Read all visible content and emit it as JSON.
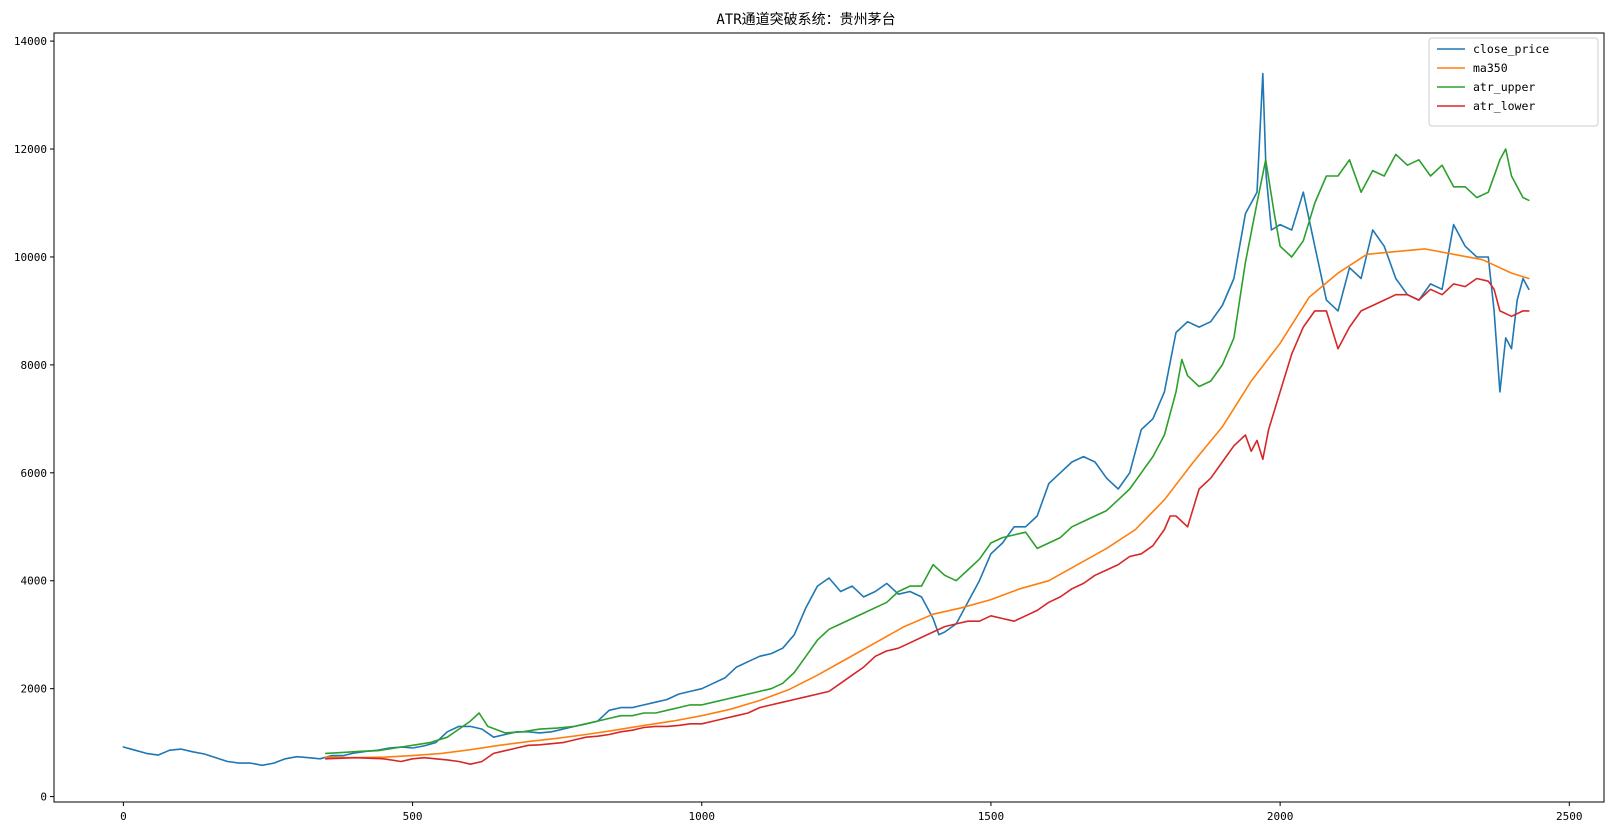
{
  "chart_data": {
    "type": "line",
    "title": "ATR通道突破系统：贵州茅台",
    "xlabel": "",
    "ylabel": "",
    "xlim": [
      -120,
      2560
    ],
    "ylim": [
      -100,
      14150
    ],
    "xticks": [
      0,
      500,
      1000,
      1500,
      2000,
      2500
    ],
    "xtick_labels": [
      "0",
      "500",
      "1000",
      "1500",
      "2000",
      "2500"
    ],
    "yticks": [
      0,
      2000,
      4000,
      6000,
      8000,
      10000,
      12000,
      14000
    ],
    "ytick_labels": [
      "0",
      "2000",
      "4000",
      "6000",
      "8000",
      "10000",
      "12000",
      "14000"
    ],
    "grid": false,
    "legend_position": "top-right",
    "series": [
      {
        "name": "close_price",
        "color": "#1f77b4",
        "x": [
          0,
          20,
          40,
          60,
          80,
          100,
          120,
          140,
          160,
          180,
          200,
          220,
          240,
          260,
          280,
          300,
          320,
          340,
          360,
          380,
          400,
          420,
          440,
          460,
          480,
          500,
          520,
          540,
          560,
          580,
          600,
          620,
          640,
          660,
          680,
          700,
          720,
          740,
          760,
          780,
          800,
          820,
          840,
          860,
          880,
          900,
          920,
          940,
          960,
          980,
          1000,
          1020,
          1040,
          1060,
          1080,
          1100,
          1120,
          1140,
          1160,
          1180,
          1200,
          1220,
          1240,
          1260,
          1280,
          1300,
          1320,
          1340,
          1360,
          1380,
          1400,
          1410,
          1420,
          1440,
          1460,
          1480,
          1500,
          1520,
          1540,
          1560,
          1580,
          1600,
          1620,
          1640,
          1660,
          1680,
          1700,
          1720,
          1740,
          1760,
          1780,
          1800,
          1820,
          1840,
          1860,
          1880,
          1900,
          1920,
          1940,
          1960,
          1970,
          1976,
          1985,
          2000,
          2020,
          2040,
          2060,
          2080,
          2100,
          2120,
          2140,
          2160,
          2180,
          2200,
          2220,
          2240,
          2260,
          2280,
          2300,
          2320,
          2340,
          2360,
          2370,
          2380,
          2390,
          2400,
          2410,
          2420,
          2430
        ],
        "values": [
          920,
          860,
          800,
          770,
          860,
          880,
          830,
          790,
          720,
          650,
          620,
          620,
          580,
          620,
          700,
          740,
          720,
          700,
          760,
          760,
          810,
          840,
          860,
          900,
          920,
          900,
          940,
          1000,
          1200,
          1300,
          1300,
          1250,
          1100,
          1150,
          1200,
          1200,
          1180,
          1200,
          1250,
          1300,
          1350,
          1400,
          1600,
          1650,
          1650,
          1700,
          1750,
          1800,
          1900,
          1950,
          2000,
          2100,
          2200,
          2400,
          2500,
          2600,
          2650,
          2750,
          3000,
          3500,
          3900,
          4050,
          3800,
          3900,
          3700,
          3800,
          3950,
          3750,
          3800,
          3700,
          3300,
          3000,
          3050,
          3200,
          3600,
          4000,
          4500,
          4700,
          5000,
          5000,
          5200,
          5800,
          6000,
          6200,
          6300,
          6200,
          5900,
          5700,
          6000,
          6800,
          7000,
          7500,
          8600,
          8800,
          8700,
          8800,
          9100,
          9600,
          10800,
          11200,
          13400,
          11500,
          10500,
          10600,
          10500,
          11200,
          10200,
          9200,
          9000,
          9800,
          9600,
          10500,
          10200,
          9600,
          9300,
          9200,
          9500,
          9400,
          10600,
          10200,
          10000,
          10000,
          9000,
          7500,
          8500,
          8300,
          9200,
          9600,
          9400
        ]
      },
      {
        "name": "ma350",
        "color": "#ff7f0e",
        "x": [
          350,
          400,
          450,
          500,
          550,
          600,
          650,
          700,
          750,
          800,
          850,
          900,
          950,
          1000,
          1050,
          1100,
          1150,
          1200,
          1250,
          1300,
          1350,
          1400,
          1450,
          1500,
          1550,
          1600,
          1650,
          1700,
          1750,
          1800,
          1850,
          1900,
          1950,
          2000,
          2050,
          2100,
          2150,
          2200,
          2250,
          2300,
          2350,
          2400,
          2430
        ],
        "values": [
          730,
          720,
          730,
          760,
          800,
          870,
          950,
          1020,
          1080,
          1150,
          1230,
          1320,
          1400,
          1500,
          1620,
          1780,
          1980,
          2250,
          2550,
          2850,
          3150,
          3380,
          3500,
          3650,
          3850,
          4000,
          4300,
          4600,
          4950,
          5500,
          6200,
          6850,
          7700,
          8400,
          9250,
          9700,
          10050,
          10100,
          10150,
          10050,
          9950,
          9700,
          9600
        ]
      },
      {
        "name": "atr_upper",
        "color": "#2ca02c",
        "x": [
          350,
          380,
          410,
          440,
          470,
          500,
          530,
          560,
          580,
          600,
          615,
          630,
          660,
          690,
          720,
          750,
          780,
          800,
          820,
          840,
          860,
          880,
          900,
          920,
          940,
          960,
          980,
          1000,
          1020,
          1040,
          1060,
          1080,
          1100,
          1120,
          1140,
          1160,
          1180,
          1200,
          1220,
          1240,
          1260,
          1280,
          1300,
          1320,
          1340,
          1360,
          1380,
          1400,
          1420,
          1440,
          1460,
          1480,
          1500,
          1520,
          1540,
          1560,
          1580,
          1600,
          1620,
          1640,
          1660,
          1680,
          1700,
          1720,
          1740,
          1760,
          1780,
          1800,
          1820,
          1830,
          1840,
          1860,
          1880,
          1900,
          1920,
          1940,
          1960,
          1975,
          1990,
          2000,
          2020,
          2040,
          2060,
          2080,
          2100,
          2120,
          2140,
          2160,
          2180,
          2200,
          2220,
          2240,
          2260,
          2280,
          2300,
          2320,
          2340,
          2360,
          2380,
          2390,
          2400,
          2420,
          2430
        ],
        "values": [
          800,
          820,
          840,
          850,
          900,
          950,
          1000,
          1100,
          1250,
          1400,
          1550,
          1300,
          1180,
          1200,
          1250,
          1270,
          1300,
          1350,
          1400,
          1450,
          1500,
          1500,
          1550,
          1550,
          1600,
          1650,
          1700,
          1700,
          1750,
          1800,
          1850,
          1900,
          1950,
          2000,
          2100,
          2300,
          2600,
          2900,
          3100,
          3200,
          3300,
          3400,
          3500,
          3600,
          3800,
          3900,
          3900,
          4300,
          4100,
          4000,
          4200,
          4400,
          4700,
          4800,
          4850,
          4900,
          4600,
          4700,
          4800,
          5000,
          5100,
          5200,
          5300,
          5500,
          5700,
          6000,
          6300,
          6700,
          7500,
          8100,
          7800,
          7600,
          7700,
          8000,
          8500,
          9900,
          11000,
          11800,
          10800,
          10200,
          10000,
          10300,
          11000,
          11500,
          11500,
          11800,
          11200,
          11600,
          11500,
          11900,
          11700,
          11800,
          11500,
          11700,
          11300,
          11300,
          11100,
          11200,
          11800,
          12000,
          11500,
          11100,
          11050
        ]
      },
      {
        "name": "atr_lower",
        "color": "#d62728",
        "x": [
          350,
          400,
          450,
          480,
          500,
          520,
          540,
          560,
          580,
          600,
          620,
          640,
          660,
          680,
          700,
          720,
          740,
          760,
          780,
          800,
          820,
          840,
          860,
          880,
          900,
          920,
          940,
          960,
          980,
          1000,
          1020,
          1040,
          1060,
          1080,
          1100,
          1120,
          1140,
          1160,
          1180,
          1200,
          1220,
          1240,
          1260,
          1280,
          1300,
          1320,
          1340,
          1360,
          1380,
          1400,
          1420,
          1440,
          1460,
          1480,
          1500,
          1520,
          1540,
          1560,
          1580,
          1600,
          1620,
          1640,
          1660,
          1680,
          1700,
          1720,
          1740,
          1760,
          1780,
          1800,
          1810,
          1820,
          1840,
          1860,
          1880,
          1900,
          1920,
          1940,
          1950,
          1960,
          1970,
          1980,
          2000,
          2020,
          2040,
          2060,
          2080,
          2100,
          2120,
          2140,
          2160,
          2180,
          2200,
          2220,
          2240,
          2260,
          2280,
          2300,
          2320,
          2340,
          2360,
          2370,
          2380,
          2400,
          2420,
          2430
        ],
        "values": [
          700,
          720,
          700,
          650,
          700,
          720,
          700,
          680,
          650,
          600,
          650,
          800,
          850,
          900,
          950,
          960,
          980,
          1000,
          1050,
          1100,
          1120,
          1150,
          1200,
          1230,
          1280,
          1300,
          1300,
          1320,
          1350,
          1350,
          1400,
          1450,
          1500,
          1550,
          1650,
          1700,
          1750,
          1800,
          1850,
          1900,
          1950,
          2100,
          2250,
          2400,
          2600,
          2700,
          2750,
          2850,
          2950,
          3050,
          3150,
          3200,
          3250,
          3250,
          3350,
          3300,
          3250,
          3350,
          3450,
          3600,
          3700,
          3850,
          3950,
          4100,
          4200,
          4300,
          4450,
          4500,
          4650,
          4950,
          5200,
          5200,
          5000,
          5700,
          5900,
          6200,
          6500,
          6700,
          6400,
          6600,
          6250,
          6800,
          7500,
          8200,
          8700,
          9000,
          9000,
          8300,
          8700,
          9000,
          9100,
          9200,
          9300,
          9300,
          9200,
          9400,
          9300,
          9500,
          9450,
          9600,
          9550,
          9400,
          9000,
          8900,
          9000,
          9000
        ]
      }
    ]
  }
}
